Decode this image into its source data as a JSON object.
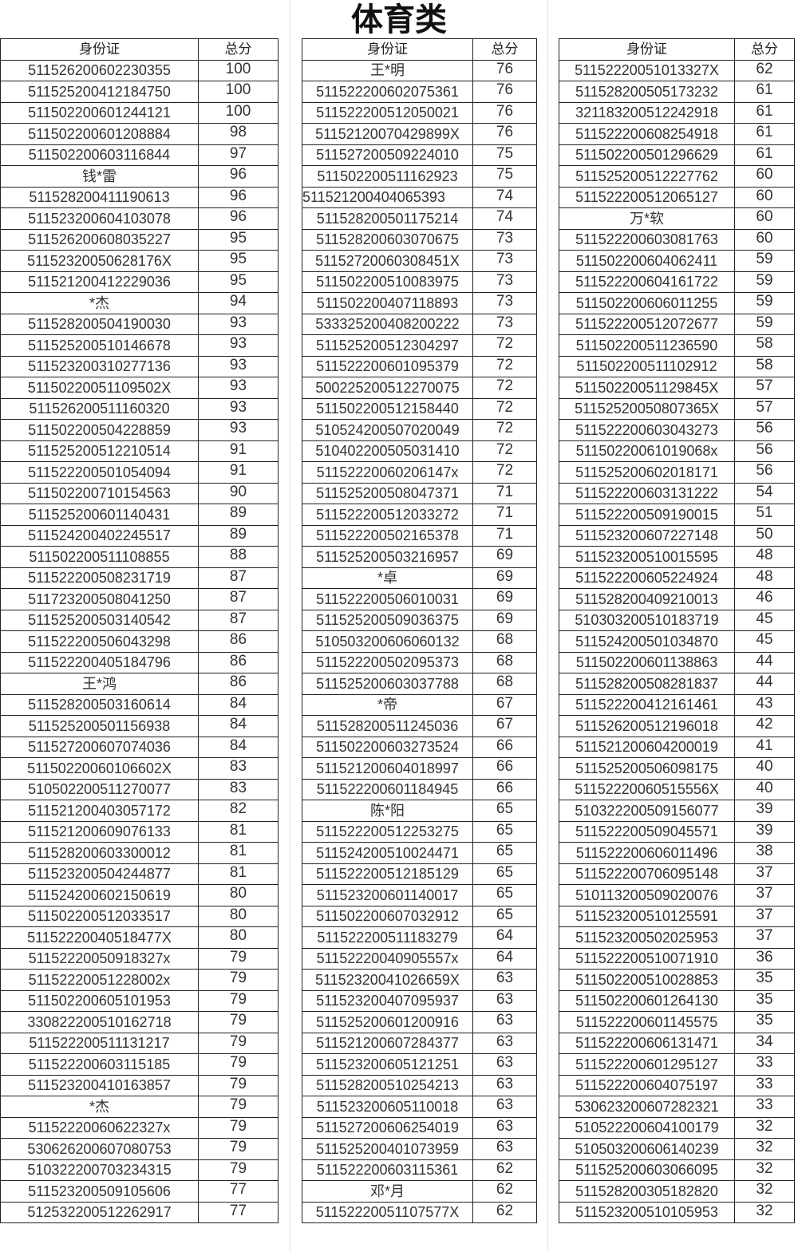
{
  "title": "体育类",
  "headers": {
    "id": "身份证",
    "score": "总分"
  },
  "tables": [
    {
      "rows": [
        [
          "511526200602230355",
          "100"
        ],
        [
          "511525200412184750",
          "100"
        ],
        [
          "511502200601244121",
          "100"
        ],
        [
          "511502200601208884",
          "98"
        ],
        [
          "511502200603116844",
          "97"
        ],
        [
          "钱*雷",
          "96"
        ],
        [
          "511528200411190613",
          "96"
        ],
        [
          "511523200604103078",
          "96"
        ],
        [
          "511526200608035227",
          "95"
        ],
        [
          "51152320050628176X",
          "95"
        ],
        [
          "511521200412229036",
          "95"
        ],
        [
          "*杰",
          "94"
        ],
        [
          "511528200504190030",
          "93"
        ],
        [
          "511525200510146678",
          "93"
        ],
        [
          "511523200310277136",
          "93"
        ],
        [
          "51150220051109502X",
          "93"
        ],
        [
          "511526200511160320",
          "93"
        ],
        [
          "511502200504228859",
          "93"
        ],
        [
          "511525200512210514",
          "91"
        ],
        [
          "511522200501054094",
          "91"
        ],
        [
          "511502200710154563",
          "90"
        ],
        [
          "511525200601140431",
          "89"
        ],
        [
          "511524200402245517",
          "89"
        ],
        [
          "511502200511108855",
          "88"
        ],
        [
          "511522200508231719",
          "87"
        ],
        [
          "511723200508041250",
          "87"
        ],
        [
          "511525200503140542",
          "87"
        ],
        [
          "511522200506043298",
          "86"
        ],
        [
          "511522200405184796",
          "86"
        ],
        [
          "王*鸿",
          "86"
        ],
        [
          "511528200503160614",
          "84"
        ],
        [
          "511525200501156938",
          "84"
        ],
        [
          "511527200607074036",
          "84"
        ],
        [
          "51150220060106602X",
          "83"
        ],
        [
          "510502200511270077",
          "83"
        ],
        [
          "511521200403057172",
          "82"
        ],
        [
          "511521200609076133",
          "81"
        ],
        [
          "511528200603300012",
          "81"
        ],
        [
          "511523200504244877",
          "81"
        ],
        [
          "511524200602150619",
          "80"
        ],
        [
          "511502200512033517",
          "80"
        ],
        [
          "51152220040518477X",
          "80"
        ],
        [
          "51152220050918327x",
          "79"
        ],
        [
          "51152220051228002x",
          "79"
        ],
        [
          "511502200605101953",
          "79"
        ],
        [
          "330822200510162718",
          "79"
        ],
        [
          "511522200511131217",
          "79"
        ],
        [
          "511522200603115185",
          "79"
        ],
        [
          "511523200410163857",
          "79"
        ],
        [
          "*杰",
          "79"
        ],
        [
          "51152220060622327x",
          "79"
        ],
        [
          "530626200607080753",
          "79"
        ],
        [
          "510322200703234315",
          "79"
        ],
        [
          "511523200509105606",
          "77"
        ],
        [
          "512532200512262917",
          "77"
        ]
      ]
    },
    {
      "rows": [
        [
          "王*明",
          "76"
        ],
        [
          "511522200602075361",
          "76"
        ],
        [
          "511522200512050021",
          "76"
        ],
        [
          "51152120070429899X",
          "76"
        ],
        [
          "511527200509224010",
          "75"
        ],
        [
          "511502200511162923",
          "75"
        ],
        [
          "511521200404065393",
          "74"
        ],
        [
          "511528200501175214",
          "74"
        ],
        [
          "511528200603070675",
          "73"
        ],
        [
          "51152720060308451X",
          "73"
        ],
        [
          "511502200510083975",
          "73"
        ],
        [
          "511502200407118893",
          "73"
        ],
        [
          "533325200408200222",
          "73"
        ],
        [
          "511525200512304297",
          "72"
        ],
        [
          "511522200601095379",
          "72"
        ],
        [
          "500225200512270075",
          "72"
        ],
        [
          "511502200512158440",
          "72"
        ],
        [
          "510524200507020049",
          "72"
        ],
        [
          "510402200505031410",
          "72"
        ],
        [
          "51152220060206147x",
          "72"
        ],
        [
          "511525200508047371",
          "71"
        ],
        [
          "511522200512033272",
          "71"
        ],
        [
          "511522200502165378",
          "71"
        ],
        [
          "511525200503216957",
          "69"
        ],
        [
          "*卓",
          "69"
        ],
        [
          "511522200506010031",
          "69"
        ],
        [
          "511525200509036375",
          "69"
        ],
        [
          "510503200606060132",
          "68"
        ],
        [
          "511522200502095373",
          "68"
        ],
        [
          "511525200603037788",
          "68"
        ],
        [
          "*帝",
          "67"
        ],
        [
          "511528200511245036",
          "67"
        ],
        [
          "511502200603273524",
          "66"
        ],
        [
          "511521200604018997",
          "66"
        ],
        [
          "511522200601184945",
          "66"
        ],
        [
          "陈*阳",
          "65"
        ],
        [
          "511522200512253275",
          "65"
        ],
        [
          "511524200510024471",
          "65"
        ],
        [
          "511522200512185129",
          "65"
        ],
        [
          "511523200601140017",
          "65"
        ],
        [
          "511502200607032912",
          "65"
        ],
        [
          "511522200511183279",
          "64"
        ],
        [
          "51152220040905557x",
          "64"
        ],
        [
          "51152320041026659X",
          "63"
        ],
        [
          "511523200407095937",
          "63"
        ],
        [
          "511525200601200916",
          "63"
        ],
        [
          "511521200607284377",
          "63"
        ],
        [
          "511523200605121251",
          "63"
        ],
        [
          "511528200510254213",
          "63"
        ],
        [
          "511523200605110018",
          "63"
        ],
        [
          "511527200606254019",
          "63"
        ],
        [
          "511525200401073959",
          "63"
        ],
        [
          "511522200603115361",
          "62"
        ],
        [
          "邓*月",
          "62"
        ],
        [
          "51152220051107577X",
          "62"
        ]
      ]
    },
    {
      "rows": [
        [
          "51152220051013327X",
          "62"
        ],
        [
          "511528200505173232",
          "61"
        ],
        [
          "321183200512242918",
          "61"
        ],
        [
          "511522200608254918",
          "61"
        ],
        [
          "511502200501296629",
          "61"
        ],
        [
          "511525200512227762",
          "60"
        ],
        [
          "511522200512065127",
          "60"
        ],
        [
          "万*软",
          "60"
        ],
        [
          "511522200603081763",
          "60"
        ],
        [
          "511502200604062411",
          "59"
        ],
        [
          "511522200604161722",
          "59"
        ],
        [
          "511502200606011255",
          "59"
        ],
        [
          "511522200512072677",
          "59"
        ],
        [
          "511502200511236590",
          "58"
        ],
        [
          "511502200511102912",
          "58"
        ],
        [
          "51150220051129845X",
          "57"
        ],
        [
          "51152520050807365X",
          "57"
        ],
        [
          "511522200603043273",
          "56"
        ],
        [
          "51150220061019068x",
          "56"
        ],
        [
          "511525200602018171",
          "56"
        ],
        [
          "511522200603131222",
          "54"
        ],
        [
          "511522200509190015",
          "51"
        ],
        [
          "511523200607227148",
          "50"
        ],
        [
          "511523200510015595",
          "48"
        ],
        [
          "511522200605224924",
          "48"
        ],
        [
          "511528200409210013",
          "46"
        ],
        [
          "510303200510183719",
          "45"
        ],
        [
          "511524200501034870",
          "45"
        ],
        [
          "511502200601138863",
          "44"
        ],
        [
          "511528200508281837",
          "44"
        ],
        [
          "511522200412161461",
          "43"
        ],
        [
          "511526200512196018",
          "42"
        ],
        [
          "511521200604200019",
          "41"
        ],
        [
          "511525200506098175",
          "40"
        ],
        [
          "51152220060515556X",
          "40"
        ],
        [
          "510322200509156077",
          "39"
        ],
        [
          "511522200509045571",
          "39"
        ],
        [
          "511522200606011496",
          "38"
        ],
        [
          "511522200706095148",
          "37"
        ],
        [
          "510113200509020076",
          "37"
        ],
        [
          "511523200510125591",
          "37"
        ],
        [
          "511523200502025953",
          "37"
        ],
        [
          "511522200510071910",
          "36"
        ],
        [
          "511502200510028853",
          "35"
        ],
        [
          "511502200601264130",
          "35"
        ],
        [
          "511522200601145575",
          "35"
        ],
        [
          "511522200606131471",
          "34"
        ],
        [
          "511522200601295127",
          "33"
        ],
        [
          "511522200604075197",
          "33"
        ],
        [
          "530623200607282321",
          "33"
        ],
        [
          "510522200604100179",
          "32"
        ],
        [
          "510503200606140239",
          "32"
        ],
        [
          "511525200603066095",
          "32"
        ],
        [
          "511528200305182820",
          "32"
        ],
        [
          "511523200510105953",
          "32"
        ]
      ]
    }
  ]
}
